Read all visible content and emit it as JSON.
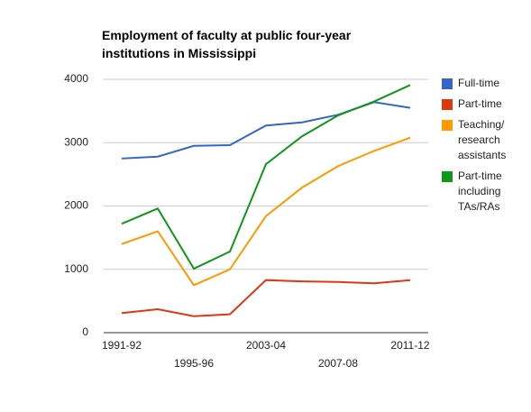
{
  "chart_data": {
    "type": "line",
    "title": "Employment of faculty at public four-year institutions in Mississippi",
    "categories": [
      "1991-92",
      null,
      "1995-96",
      null,
      "2003-04",
      null,
      "2007-08",
      null,
      "2011-12"
    ],
    "series": [
      {
        "name": "Full-time",
        "color": "#3366cc",
        "values": [
          2750,
          2780,
          2950,
          2960,
          3270,
          3320,
          3440,
          3640,
          3550
        ]
      },
      {
        "name": "Part-time",
        "color": "#dc3912",
        "values": [
          310,
          370,
          260,
          290,
          830,
          810,
          800,
          780,
          830
        ]
      },
      {
        "name": "Teaching/ research assistants",
        "color": "#ff9900",
        "values": [
          1400,
          1600,
          750,
          1000,
          1840,
          2290,
          2630,
          2870,
          3080
        ]
      },
      {
        "name": "Part-time including TAs/RAs",
        "color": "#109618",
        "values": [
          1720,
          1960,
          1010,
          1280,
          2660,
          3100,
          3430,
          3650,
          3910
        ]
      }
    ],
    "ylim": [
      0,
      4000
    ],
    "yticks": [
      0,
      1000,
      2000,
      3000,
      4000
    ],
    "grid": true,
    "legend": "right"
  }
}
